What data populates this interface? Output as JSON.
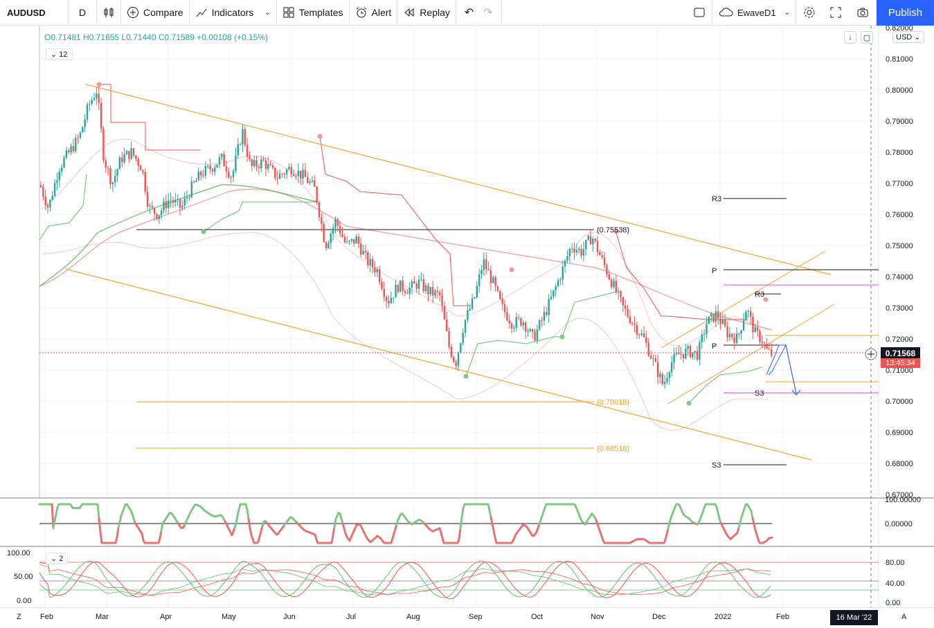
{
  "toolbar": {
    "symbol": "AUDUSD",
    "interval": "D",
    "compare_label": "Compare",
    "indicators_label": "Indicators",
    "templates_label": "Templates",
    "alert_label": "Alert",
    "replay_label": "Replay",
    "layout_name": "EwaveD1",
    "publish_label": "Publish"
  },
  "legend": {
    "open": "O0.71481",
    "high": "H0.71655",
    "low": "L0.71440",
    "close": "C0.71589",
    "change": "+0.00108 (+0.15%)",
    "indicator_count": "12"
  },
  "price_axis": {
    "currency": "USD",
    "ticks": [
      "0.82000",
      "0.81000",
      "0.80000",
      "0.79000",
      "0.78000",
      "0.77000",
      "0.76000",
      "0.75000",
      "0.74000",
      "0.73000",
      "0.72000",
      "0.71000",
      "0.70000",
      "0.69000",
      "0.68000",
      "0.67000"
    ],
    "current_price": "0.71568",
    "countdown": "13:45:34"
  },
  "osc_axis": {
    "ticks": [
      "100.00000",
      "0.00000"
    ]
  },
  "stoch_axis": {
    "left_ticks": [
      "100.00",
      "50.00",
      "0.00"
    ],
    "right_ticks": [
      "80.00",
      "40.00",
      "0.00"
    ],
    "indicator_count": "2"
  },
  "time_axis": {
    "labels": [
      "Feb",
      "Mar",
      "Apr",
      "May",
      "Jun",
      "Jul",
      "Aug",
      "Sep",
      "Oct",
      "Nov",
      "Dec",
      "2022",
      "Feb"
    ],
    "crosshair_date": "16 Mar '22",
    "left_button": "Z",
    "right_button": "A"
  },
  "annotations": {
    "fib_high": "(0.75538)",
    "fib_mid": "(0.70018)",
    "fib_low": "(0.68518)",
    "pivot_r3_a": "R3",
    "pivot_p_a": "P",
    "pivot_s3_a": "S3",
    "pivot_r3_b": "R3",
    "pivot_p_b": "P",
    "pivot_s3_b": "S3"
  },
  "colors": {
    "up": "#26a69a",
    "down": "#ef5350",
    "accent": "#2962ff",
    "channel": "#f7a12b"
  },
  "chart_data": {
    "type": "candlestick",
    "symbol": "AUDUSD",
    "interval": "D",
    "ylim": [
      0.67,
      0.82
    ],
    "series": [
      {
        "name": "",
        "x": [
          "Feb",
          "Mar",
          "Apr",
          "May",
          "Jun",
          "Jul",
          "Aug",
          "Sep",
          "Oct",
          "Nov",
          "Dec",
          "2022",
          "Feb"
        ],
        "values": [
          0.768,
          0.79,
          0.77,
          0.773,
          0.778,
          0.758,
          0.733,
          0.725,
          0.728,
          0.745,
          0.71,
          0.726,
          0.7157
        ]
      }
    ],
    "levels": [
      0.75538,
      0.70018,
      0.68518
    ]
  }
}
